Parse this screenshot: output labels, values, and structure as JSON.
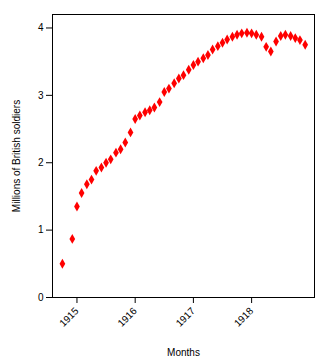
{
  "chart_data": {
    "type": "scatter",
    "xlabel": "Months",
    "ylabel": "Millions of British soldiers",
    "color": "#FF0000",
    "marker": "diamond",
    "xlim": [
      1914.58,
      1919.08
    ],
    "xticks": [
      1915.0,
      1916.0,
      1917.0,
      1918.0
    ],
    "ylim": [
      0,
      4.2
    ],
    "yticks": [
      0,
      1,
      2,
      3,
      4
    ],
    "grid": false,
    "x": [
      1914.75,
      1914.92,
      1915.0,
      1915.08,
      1915.17,
      1915.25,
      1915.33,
      1915.42,
      1915.5,
      1915.58,
      1915.67,
      1915.75,
      1915.83,
      1915.92,
      1916.0,
      1916.08,
      1916.17,
      1916.25,
      1916.33,
      1916.42,
      1916.5,
      1916.58,
      1916.67,
      1916.75,
      1916.83,
      1916.92,
      1917.0,
      1917.08,
      1917.17,
      1917.25,
      1917.33,
      1917.42,
      1917.5,
      1917.58,
      1917.67,
      1917.75,
      1917.83,
      1917.92,
      1918.0,
      1918.08,
      1918.17,
      1918.25,
      1918.33,
      1918.42,
      1918.5,
      1918.58,
      1918.67,
      1918.75,
      1918.83,
      1918.92
    ],
    "values": [
      0.5,
      0.87,
      1.35,
      1.55,
      1.68,
      1.75,
      1.88,
      1.93,
      2.0,
      2.05,
      2.15,
      2.2,
      2.3,
      2.45,
      2.65,
      2.7,
      2.75,
      2.78,
      2.82,
      2.9,
      3.05,
      3.1,
      3.18,
      3.25,
      3.3,
      3.38,
      3.45,
      3.5,
      3.55,
      3.6,
      3.68,
      3.73,
      3.78,
      3.83,
      3.87,
      3.9,
      3.92,
      3.93,
      3.92,
      3.9,
      3.87,
      3.72,
      3.65,
      3.8,
      3.88,
      3.9,
      3.88,
      3.85,
      3.82,
      3.75
    ]
  }
}
